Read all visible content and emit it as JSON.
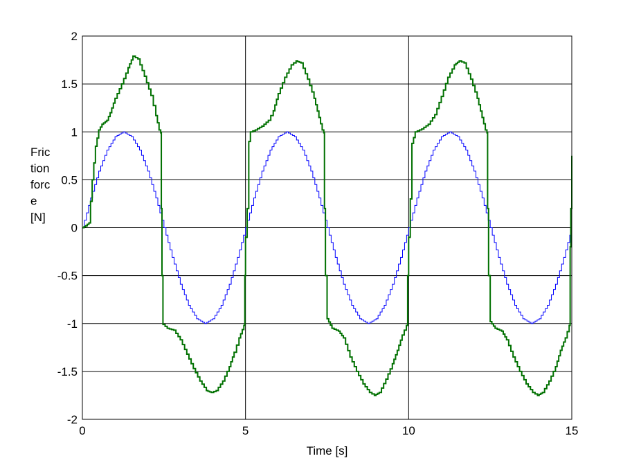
{
  "chart_data": {
    "type": "line",
    "xlabel": "Time [s]",
    "ylabel_lines": [
      "Fric",
      "tion",
      "forc",
      "e",
      "[N]"
    ],
    "xlim": [
      0,
      15
    ],
    "ylim": [
      -2,
      2
    ],
    "xticks": [
      0,
      5,
      10,
      15
    ],
    "yticks": [
      -2,
      -1.5,
      -1,
      -0.5,
      0,
      0.5,
      1,
      1.5,
      2
    ],
    "xtick_labels": [
      "0",
      "5",
      "10",
      "15"
    ],
    "ytick_labels": [
      "-2",
      "-1.5",
      "-1",
      "-0.5",
      "0",
      "0.5",
      "1",
      "1.5",
      "2"
    ],
    "grid": true,
    "series": [
      {
        "color": "#0000ff",
        "step": true,
        "points": [
          [
            0,
            0
          ],
          [
            0.25,
            0.31
          ],
          [
            0.5,
            0.59
          ],
          [
            0.75,
            0.81
          ],
          [
            1,
            0.95
          ],
          [
            1.25,
            1.0
          ],
          [
            1.5,
            0.95
          ],
          [
            1.75,
            0.81
          ],
          [
            2,
            0.59
          ],
          [
            2.25,
            0.31
          ],
          [
            2.5,
            0
          ],
          [
            2.75,
            -0.31
          ],
          [
            3,
            -0.59
          ],
          [
            3.25,
            -0.81
          ],
          [
            3.5,
            -0.95
          ],
          [
            3.75,
            -1.0
          ],
          [
            4,
            -0.95
          ],
          [
            4.25,
            -0.81
          ],
          [
            4.5,
            -0.59
          ],
          [
            4.75,
            -0.31
          ],
          [
            5,
            0
          ],
          [
            5.25,
            0.31
          ],
          [
            5.5,
            0.59
          ],
          [
            5.75,
            0.81
          ],
          [
            6,
            0.95
          ],
          [
            6.25,
            1.0
          ],
          [
            6.5,
            0.95
          ],
          [
            6.75,
            0.81
          ],
          [
            7,
            0.59
          ],
          [
            7.25,
            0.31
          ],
          [
            7.5,
            0
          ],
          [
            7.75,
            -0.31
          ],
          [
            8,
            -0.59
          ],
          [
            8.25,
            -0.81
          ],
          [
            8.5,
            -0.95
          ],
          [
            8.75,
            -1.0
          ],
          [
            9,
            -0.95
          ],
          [
            9.25,
            -0.81
          ],
          [
            9.5,
            -0.59
          ],
          [
            9.75,
            -0.31
          ],
          [
            10,
            0
          ],
          [
            10.25,
            0.31
          ],
          [
            10.5,
            0.59
          ],
          [
            10.75,
            0.81
          ],
          [
            11,
            0.95
          ],
          [
            11.25,
            1.0
          ],
          [
            11.5,
            0.95
          ],
          [
            11.75,
            0.81
          ],
          [
            12,
            0.59
          ],
          [
            12.25,
            0.31
          ],
          [
            12.5,
            0
          ],
          [
            12.75,
            -0.31
          ],
          [
            13,
            -0.59
          ],
          [
            13.25,
            -0.81
          ],
          [
            13.5,
            -0.95
          ],
          [
            13.75,
            -1.0
          ],
          [
            14,
            -0.95
          ],
          [
            14.25,
            -0.81
          ],
          [
            14.5,
            -0.59
          ],
          [
            14.75,
            -0.31
          ],
          [
            15,
            0
          ]
        ]
      },
      {
        "color": "#007000",
        "step": true,
        "points": [
          [
            0,
            0
          ],
          [
            0.1,
            0.02
          ],
          [
            0.2,
            0.05
          ],
          [
            0.3,
            0.5
          ],
          [
            0.4,
            0.85
          ],
          [
            0.5,
            1.02
          ],
          [
            0.6,
            1.08
          ],
          [
            0.75,
            1.12
          ],
          [
            0.85,
            1.2
          ],
          [
            1.0,
            1.35
          ],
          [
            1.2,
            1.5
          ],
          [
            1.4,
            1.67
          ],
          [
            1.55,
            1.79
          ],
          [
            1.7,
            1.76
          ],
          [
            1.9,
            1.58
          ],
          [
            2.1,
            1.38
          ],
          [
            2.25,
            1.17
          ],
          [
            2.35,
            1.02
          ],
          [
            2.4,
            0.99
          ],
          [
            2.42,
            0.2
          ],
          [
            2.44,
            -0.5
          ],
          [
            2.47,
            -1.01
          ],
          [
            2.6,
            -1.05
          ],
          [
            2.8,
            -1.07
          ],
          [
            3.0,
            -1.17
          ],
          [
            3.2,
            -1.32
          ],
          [
            3.4,
            -1.47
          ],
          [
            3.6,
            -1.6
          ],
          [
            3.8,
            -1.7
          ],
          [
            3.95,
            -1.72
          ],
          [
            4.1,
            -1.7
          ],
          [
            4.3,
            -1.6
          ],
          [
            4.5,
            -1.45
          ],
          [
            4.65,
            -1.3
          ],
          [
            4.8,
            -1.15
          ],
          [
            4.95,
            -1.02
          ],
          [
            4.98,
            -0.5
          ],
          [
            5.0,
            -0.1
          ],
          [
            5.05,
            0.2
          ],
          [
            5.1,
            0.9
          ],
          [
            5.15,
            1.0
          ],
          [
            5.3,
            1.02
          ],
          [
            5.5,
            1.06
          ],
          [
            5.7,
            1.12
          ],
          [
            5.85,
            1.22
          ],
          [
            6.0,
            1.4
          ],
          [
            6.2,
            1.57
          ],
          [
            6.4,
            1.7
          ],
          [
            6.55,
            1.74
          ],
          [
            6.7,
            1.72
          ],
          [
            6.9,
            1.55
          ],
          [
            7.1,
            1.35
          ],
          [
            7.25,
            1.15
          ],
          [
            7.35,
            1.02
          ],
          [
            7.4,
            0.99
          ],
          [
            7.42,
            0.2
          ],
          [
            7.45,
            -0.5
          ],
          [
            7.5,
            -0.95
          ],
          [
            7.65,
            -1.05
          ],
          [
            7.85,
            -1.08
          ],
          [
            8.0,
            -1.15
          ],
          [
            8.2,
            -1.35
          ],
          [
            8.4,
            -1.5
          ],
          [
            8.6,
            -1.63
          ],
          [
            8.8,
            -1.72
          ],
          [
            8.95,
            -1.75
          ],
          [
            9.1,
            -1.72
          ],
          [
            9.3,
            -1.58
          ],
          [
            9.5,
            -1.42
          ],
          [
            9.65,
            -1.28
          ],
          [
            9.8,
            -1.12
          ],
          [
            9.93,
            -1.02
          ],
          [
            9.97,
            -0.5
          ],
          [
            10.0,
            -0.1
          ],
          [
            10.05,
            0.3
          ],
          [
            10.1,
            0.88
          ],
          [
            10.2,
            1.0
          ],
          [
            10.4,
            1.03
          ],
          [
            10.6,
            1.08
          ],
          [
            10.8,
            1.18
          ],
          [
            11.0,
            1.37
          ],
          [
            11.2,
            1.57
          ],
          [
            11.4,
            1.7
          ],
          [
            11.55,
            1.74
          ],
          [
            11.7,
            1.72
          ],
          [
            11.9,
            1.55
          ],
          [
            12.1,
            1.35
          ],
          [
            12.25,
            1.15
          ],
          [
            12.35,
            1.02
          ],
          [
            12.4,
            0.99
          ],
          [
            12.42,
            0.2
          ],
          [
            12.45,
            -0.5
          ],
          [
            12.5,
            -0.98
          ],
          [
            12.65,
            -1.05
          ],
          [
            12.85,
            -1.08
          ],
          [
            13.0,
            -1.17
          ],
          [
            13.2,
            -1.35
          ],
          [
            13.4,
            -1.5
          ],
          [
            13.6,
            -1.63
          ],
          [
            13.8,
            -1.72
          ],
          [
            13.95,
            -1.75
          ],
          [
            14.1,
            -1.72
          ],
          [
            14.3,
            -1.6
          ],
          [
            14.5,
            -1.45
          ],
          [
            14.65,
            -1.28
          ],
          [
            14.8,
            -1.15
          ],
          [
            14.92,
            -1.02
          ],
          [
            14.95,
            -0.2
          ],
          [
            14.97,
            0.2
          ],
          [
            15.0,
            0.75
          ]
        ]
      }
    ]
  }
}
